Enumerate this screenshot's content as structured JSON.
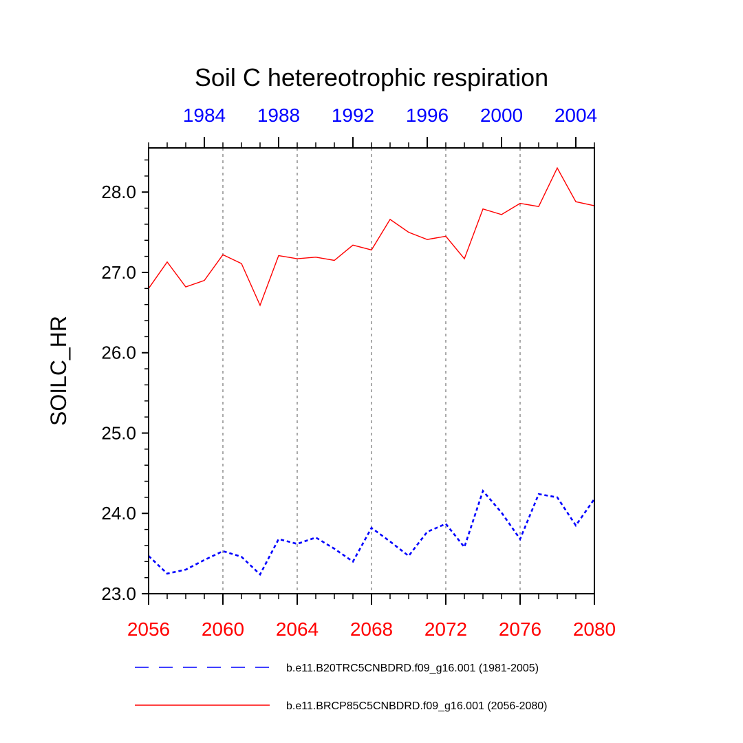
{
  "chart_data": {
    "type": "line",
    "title": "Soil C hetereotrophic respiration",
    "ylabel": "SOILC_HR",
    "xlabel": "",
    "ylim": [
      23.0,
      28.55
    ],
    "yticks": [
      23.0,
      24.0,
      25.0,
      26.0,
      27.0,
      28.0
    ],
    "ytick_labels": [
      "23.0",
      "24.0",
      "25.0",
      "26.0",
      "27.0",
      "28.0"
    ],
    "y_minor_step": 0.2,
    "bottom_axis": {
      "range": [
        2056,
        2080
      ],
      "ticks": [
        2056,
        2060,
        2064,
        2068,
        2072,
        2076,
        2080
      ],
      "labels": [
        "2056",
        "2060",
        "2064",
        "2068",
        "2072",
        "2076",
        "2080"
      ],
      "color": "#ff0000"
    },
    "top_axis": {
      "range": [
        1981,
        2005
      ],
      "ticks": [
        1984,
        1988,
        1992,
        1996,
        2000,
        2004
      ],
      "labels": [
        "1984",
        "1988",
        "1992",
        "1996",
        "2000",
        "2004"
      ],
      "color": "#0000ff"
    },
    "gridlines_x": [
      2060,
      2064,
      2068,
      2072,
      2076
    ],
    "grid_color": "#aaaaaa",
    "series": [
      {
        "name": "b.e11.B20TRC5CNBDRD.f09_g16.001 (1981-2005)",
        "color": "#0000ff",
        "style": "dashed",
        "x": [
          1981,
          1982,
          1983,
          1984,
          1985,
          1986,
          1987,
          1988,
          1989,
          1990,
          1991,
          1992,
          1993,
          1994,
          1995,
          1996,
          1997,
          1998,
          1999,
          2000,
          2001,
          2002,
          2003,
          2004,
          2005
        ],
        "values": [
          23.47,
          23.25,
          23.3,
          23.42,
          23.53,
          23.46,
          23.24,
          23.68,
          23.62,
          23.7,
          23.56,
          23.4,
          23.82,
          23.65,
          23.47,
          23.77,
          23.87,
          23.58,
          24.28,
          24.01,
          23.68,
          24.24,
          24.2,
          23.85,
          24.18
        ]
      },
      {
        "name": "b.e11.BRCP85C5CNBDRD.f09_g16.001 (2056-2080)",
        "color": "#ff0000",
        "style": "solid",
        "x": [
          2056,
          2057,
          2058,
          2059,
          2060,
          2061,
          2062,
          2063,
          2064,
          2065,
          2066,
          2067,
          2068,
          2069,
          2070,
          2071,
          2072,
          2073,
          2074,
          2075,
          2076,
          2077,
          2078,
          2079,
          2080
        ],
        "values": [
          26.8,
          27.13,
          26.82,
          26.9,
          27.22,
          27.11,
          26.59,
          27.21,
          27.17,
          27.19,
          27.15,
          27.34,
          27.28,
          27.66,
          27.5,
          27.41,
          27.45,
          27.17,
          27.79,
          27.72,
          27.86,
          27.82,
          28.3,
          27.88,
          27.83
        ]
      }
    ],
    "legend": {
      "placement": "bottom",
      "entries": [
        {
          "label": "b.e11.B20TRC5CNBDRD.f09_g16.001 (1981-2005)",
          "color": "#0000ff",
          "style": "dashed"
        },
        {
          "label": "b.e11.BRCP85C5CNBDRD.f09_g16.001 (2056-2080)",
          "color": "#ff0000",
          "style": "solid"
        }
      ]
    }
  }
}
